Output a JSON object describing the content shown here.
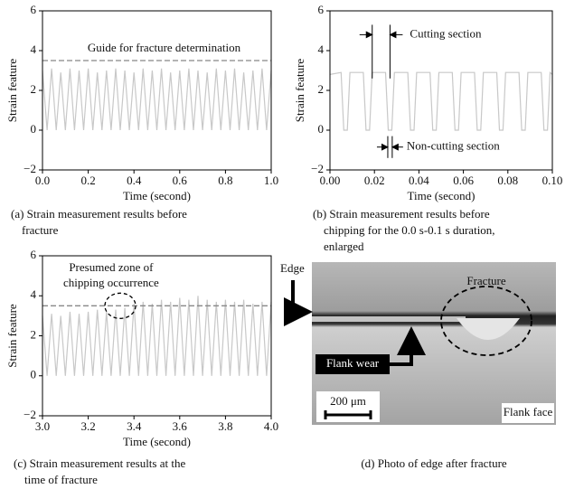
{
  "chart_data": [
    {
      "type": "line",
      "xlabel": "Time (second)",
      "ylabel": "Strain feature",
      "xlim": [
        0,
        1
      ],
      "ylim": [
        -2,
        6
      ],
      "xticks": [
        {
          "value": 0,
          "label": "0.0"
        },
        0.2,
        0.4,
        0.6,
        0.8,
        {
          "value": 1,
          "label": "1.0"
        }
      ],
      "yticks": [
        {
          "value": -2,
          "label": "−2"
        },
        0,
        2,
        4,
        6
      ],
      "hline": 3.5,
      "annotations": [
        "Guide for fracture determination"
      ],
      "caption": [
        "(a) Strain measurement results before",
        "fracture"
      ],
      "series": [
        {
          "color": "#c8c8c8",
          "x": [
            0,
            0.02,
            0.04,
            0.06,
            0.08,
            0.1,
            0.12,
            0.14,
            0.16,
            0.18,
            0.2,
            0.22,
            0.24,
            0.26,
            0.28,
            0.3,
            0.32,
            0.34,
            0.36,
            0.38,
            0.4,
            0.42,
            0.44,
            0.46,
            0.48,
            0.5,
            0.52,
            0.54,
            0.56,
            0.58,
            0.6,
            0.62,
            0.64,
            0.66,
            0.68,
            0.7,
            0.72,
            0.74,
            0.76,
            0.78,
            0.8,
            0.82,
            0.84,
            0.86,
            0.88,
            0.9,
            0.92,
            0.94,
            0.96,
            0.98,
            1.0
          ],
          "values": [
            3.0,
            0,
            3.1,
            0,
            2.9,
            0,
            3.1,
            0,
            3.0,
            0,
            3.1,
            0,
            2.9,
            0,
            3.0,
            0,
            3.1,
            0,
            3.0,
            0,
            2.9,
            0,
            3.1,
            0,
            3.0,
            0,
            3.1,
            0,
            2.9,
            0,
            3.0,
            0,
            3.1,
            0,
            3.0,
            0,
            2.9,
            0,
            3.1,
            0,
            3.0,
            0,
            3.1,
            0,
            2.9,
            0,
            3.0,
            0,
            3.1,
            0,
            3.0
          ]
        }
      ]
    },
    {
      "type": "line",
      "xlabel": "Time (second)",
      "ylabel": "Strain feature",
      "xlim": [
        0,
        0.1
      ],
      "ylim": [
        -2,
        6
      ],
      "xticks": [
        {
          "value": 0,
          "label": "0.00"
        },
        {
          "value": 0.02,
          "label": "0.02"
        },
        {
          "value": 0.04,
          "label": "0.04"
        },
        {
          "value": 0.06,
          "label": "0.06"
        },
        {
          "value": 0.08,
          "label": "0.08"
        },
        {
          "value": 0.1,
          "label": "0.10"
        }
      ],
      "yticks": [
        {
          "value": -2,
          "label": "−2"
        },
        0,
        2,
        4,
        6
      ],
      "annotations": [
        "Cutting section",
        "Non-cutting section"
      ],
      "caption": [
        "(b) Strain measurement results before",
        "chipping for the 0.0 s-0.1 s duration,",
        "enlarged"
      ],
      "series": [
        {
          "color": "#c8c8c8",
          "x": [
            0,
            0.005,
            0.0062,
            0.0078,
            0.009,
            0.015,
            0.0162,
            0.0178,
            0.019,
            0.025,
            0.0262,
            0.0278,
            0.029,
            0.035,
            0.0362,
            0.0378,
            0.039,
            0.045,
            0.0462,
            0.0478,
            0.049,
            0.055,
            0.0562,
            0.0578,
            0.059,
            0.065,
            0.0662,
            0.0678,
            0.069,
            0.075,
            0.0762,
            0.0778,
            0.079,
            0.085,
            0.0862,
            0.0878,
            0.089,
            0.095,
            0.0962,
            0.0978,
            0.099,
            0.1
          ],
          "values": [
            2.8,
            2.9,
            0,
            0,
            2.9,
            2.9,
            0,
            0,
            2.9,
            2.9,
            0,
            0,
            2.9,
            2.9,
            0,
            0,
            2.9,
            2.9,
            0,
            0,
            2.9,
            2.9,
            0,
            0,
            2.9,
            2.9,
            0,
            0,
            2.9,
            2.9,
            0,
            0,
            2.9,
            2.9,
            0,
            0,
            2.9,
            2.9,
            0,
            0,
            2.9,
            2.8
          ]
        }
      ]
    },
    {
      "type": "line",
      "xlabel": "Time (second)",
      "ylabel": "Strain feature",
      "xlim": [
        3,
        4
      ],
      "ylim": [
        -2,
        6
      ],
      "xticks": [
        {
          "value": 3,
          "label": "3.0"
        },
        3.2,
        3.4,
        3.6,
        3.8,
        {
          "value": 4,
          "label": "4.0"
        }
      ],
      "yticks": [
        {
          "value": -2,
          "label": "−2"
        },
        0,
        2,
        4,
        6
      ],
      "hline": 3.5,
      "annotations": [
        "Presumed zone of",
        "chipping occurrence"
      ],
      "caption": [
        "(c) Strain measurement results at the",
        "time of fracture"
      ],
      "series": [
        {
          "color": "#c8c8c8",
          "x": [
            3.0,
            3.02,
            3.04,
            3.06,
            3.08,
            3.1,
            3.12,
            3.14,
            3.16,
            3.18,
            3.2,
            3.22,
            3.24,
            3.26,
            3.28,
            3.3,
            3.32,
            3.34,
            3.36,
            3.38,
            3.4,
            3.42,
            3.44,
            3.46,
            3.48,
            3.5,
            3.52,
            3.54,
            3.56,
            3.58,
            3.6,
            3.62,
            3.64,
            3.66,
            3.68,
            3.7,
            3.72,
            3.74,
            3.76,
            3.78,
            3.8,
            3.82,
            3.84,
            3.86,
            3.88,
            3.9,
            3.92,
            3.94,
            3.96,
            3.98,
            4.0
          ],
          "values": [
            3.0,
            0,
            3.1,
            0,
            3.0,
            0,
            3.2,
            0,
            3.1,
            0,
            3.2,
            0,
            3.3,
            0,
            3.2,
            0,
            3.3,
            0,
            3.4,
            0,
            3.6,
            0,
            3.7,
            0,
            3.6,
            0,
            3.8,
            0,
            3.7,
            0,
            3.9,
            0,
            3.8,
            0,
            4.0,
            0,
            3.8,
            0,
            3.7,
            0,
            3.8,
            0,
            3.7,
            0,
            3.8,
            0,
            3.6,
            0,
            3.7,
            0,
            3.7
          ]
        }
      ]
    }
  ],
  "photo": {
    "edge": "Edge",
    "fracture": "Fracture",
    "flank_wear": "Flank wear",
    "scale": "200 μm",
    "flank_face": "Flank face",
    "caption": "(d) Photo of edge after fracture"
  }
}
